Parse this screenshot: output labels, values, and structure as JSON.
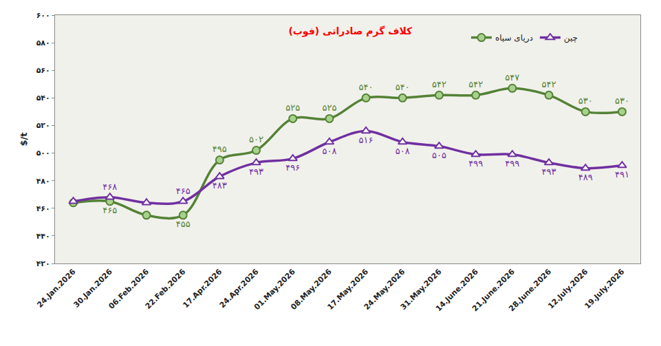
{
  "chart_data": {
    "type": "line",
    "title": "کلاف گرم صادراتی (فوب)",
    "y_label": "$/t",
    "categories": [
      "24.Jan.2026",
      "30.Jan.2026",
      "06.Feb.2026",
      "22.Feb.2026",
      "17.Apr.2026",
      "24.Apr.2026",
      "01.May.2026",
      "08.May.2026",
      "17.May.2026",
      "24.May.2026",
      "31.May.2026",
      "14.June.2026",
      "21.June.2026",
      "28.June.2026",
      "12.July.2026",
      "19.July.2026"
    ],
    "series": [
      {
        "name": "دریای سیاه",
        "color": "#548235",
        "marker": "circle",
        "line_style": "solid",
        "values": [
          464,
          465,
          455,
          455,
          495,
          502,
          525,
          525,
          540,
          540,
          542,
          542,
          547,
          542,
          530,
          530
        ],
        "value_labels": [
          null,
          "۴۶۵",
          null,
          "۴۵۵",
          "۴۹۵",
          "۵۰۲",
          "۵۲۵",
          "۵۲۵",
          "۵۴۰",
          "۵۴۰",
          "۵۴۲",
          "۵۴۲",
          "۵۴۷",
          "۵۴۲",
          "۵۳۰",
          "۵۳۰"
        ]
      },
      {
        "name": "چین",
        "color": "#7030a0",
        "marker": "triangle-up",
        "line_style": "solid",
        "values": [
          465,
          468,
          464,
          465,
          483,
          493,
          496,
          508,
          516,
          508,
          505,
          499,
          499,
          493,
          489,
          491
        ],
        "value_labels": [
          null,
          "۴۶۸",
          null,
          "۴۶۵",
          "۴۸۳",
          "۴۹۳",
          "۴۹۶",
          "۵۰۸",
          "۵۱۶",
          "۵۰۸",
          "۵۰۵",
          "۴۹۹",
          "۴۹۹",
          "۴۹۳",
          "۴۸۹",
          "۴۹۱"
        ]
      }
    ],
    "ylim": [
      420,
      600
    ],
    "yticks": [
      {
        "value": 420,
        "label": "۴۲۰"
      },
      {
        "value": 440,
        "label": "۴۴۰"
      },
      {
        "value": 460,
        "label": "۴۶۰"
      },
      {
        "value": 480,
        "label": "۴۸۰"
      },
      {
        "value": 500,
        "label": "۵۰۰"
      },
      {
        "value": 520,
        "label": "۵۲۰"
      },
      {
        "value": 540,
        "label": "۵۴۰"
      },
      {
        "value": 560,
        "label": "۵۶۰"
      },
      {
        "value": 580,
        "label": "۵۸۰"
      },
      {
        "value": 600,
        "label": "۶۰۰"
      }
    ],
    "grid": false,
    "legend": "top right",
    "data_labels": true
  }
}
